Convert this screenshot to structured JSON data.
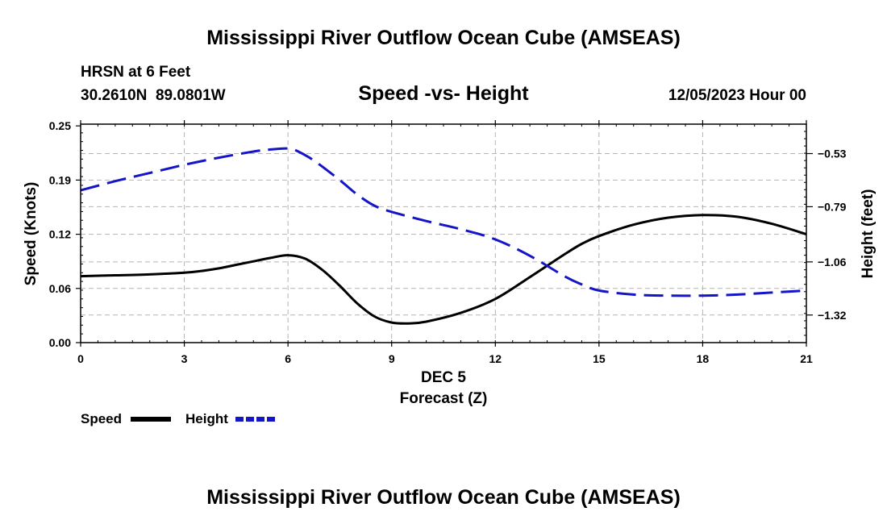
{
  "page": {
    "title": "Mississippi River Outflow Ocean Cube (AMSEAS)",
    "footer_title": "Mississippi River Outflow Ocean Cube (AMSEAS)",
    "station": "HRSN at 6 Feet",
    "coords": "30.2610N  89.0801W",
    "subtitle": "Speed -vs- Height",
    "datetime": "12/05/2023 Hour 00"
  },
  "colors": {
    "speed": "#000000",
    "height": "#1414c8",
    "grid": "#b4b4b4"
  },
  "chart_data": {
    "type": "line",
    "title": "Speed -vs- Height",
    "xlabel_day": "DEC 5",
    "xlabel": "Forecast (Z)",
    "ylabel": "Speed (Knots)",
    "y2label": "Height (feet)",
    "xlim": [
      0,
      21
    ],
    "ylim": [
      0,
      0.25
    ],
    "y2lim": [
      -1.455,
      -0.386
    ],
    "x_ticks": [
      0,
      3,
      6,
      9,
      12,
      15,
      18,
      21
    ],
    "x_tick_labels": [
      "0",
      "3",
      "6",
      "9",
      "12",
      "15",
      "18",
      "21"
    ],
    "y_ticks": [
      0,
      0.062,
      0.124,
      0.186,
      0.248
    ],
    "y_tick_labels": [
      "0.00",
      "0.06",
      "0.12",
      "0.19",
      "0.25"
    ],
    "y2_ticks": [
      -0.53,
      -0.79,
      -1.06,
      -1.32
    ],
    "y2_tick_labels": [
      "−0.53",
      "−0.79",
      "−1.06",
      "−1.32"
    ],
    "grid": true,
    "legend": [
      {
        "name": "Speed",
        "style": "solid"
      },
      {
        "name": "Height",
        "style": "dashed"
      }
    ],
    "series": [
      {
        "name": "Speed",
        "axis": "left",
        "style": "solid",
        "x": [
          0,
          1,
          2,
          3,
          3.5,
          4,
          4.5,
          5,
          5.5,
          6,
          6.5,
          7,
          7.5,
          8,
          8.5,
          9,
          9.5,
          10,
          11,
          12,
          13,
          14,
          14.5,
          15,
          16,
          17,
          18,
          19,
          20,
          21
        ],
        "values": [
          0.076,
          0.077,
          0.078,
          0.08,
          0.082,
          0.085,
          0.089,
          0.093,
          0.097,
          0.1,
          0.096,
          0.083,
          0.065,
          0.045,
          0.03,
          0.023,
          0.022,
          0.024,
          0.034,
          0.05,
          0.075,
          0.101,
          0.113,
          0.122,
          0.135,
          0.143,
          0.146,
          0.144,
          0.136,
          0.124
        ]
      },
      {
        "name": "Height",
        "axis": "right",
        "style": "dashed",
        "x": [
          0,
          1,
          2,
          3,
          4,
          5,
          5.5,
          6,
          6.3,
          6.8,
          7.5,
          8,
          8.5,
          9,
          10,
          11,
          12,
          13,
          14,
          14.5,
          15,
          16,
          17,
          18,
          19,
          20,
          21
        ],
        "values": [
          -0.71,
          -0.665,
          -0.625,
          -0.585,
          -0.55,
          -0.52,
          -0.51,
          -0.505,
          -0.52,
          -0.57,
          -0.66,
          -0.73,
          -0.785,
          -0.815,
          -0.86,
          -0.9,
          -0.95,
          -1.03,
          -1.13,
          -1.17,
          -1.2,
          -1.22,
          -1.225,
          -1.225,
          -1.22,
          -1.21,
          -1.2
        ]
      }
    ]
  }
}
